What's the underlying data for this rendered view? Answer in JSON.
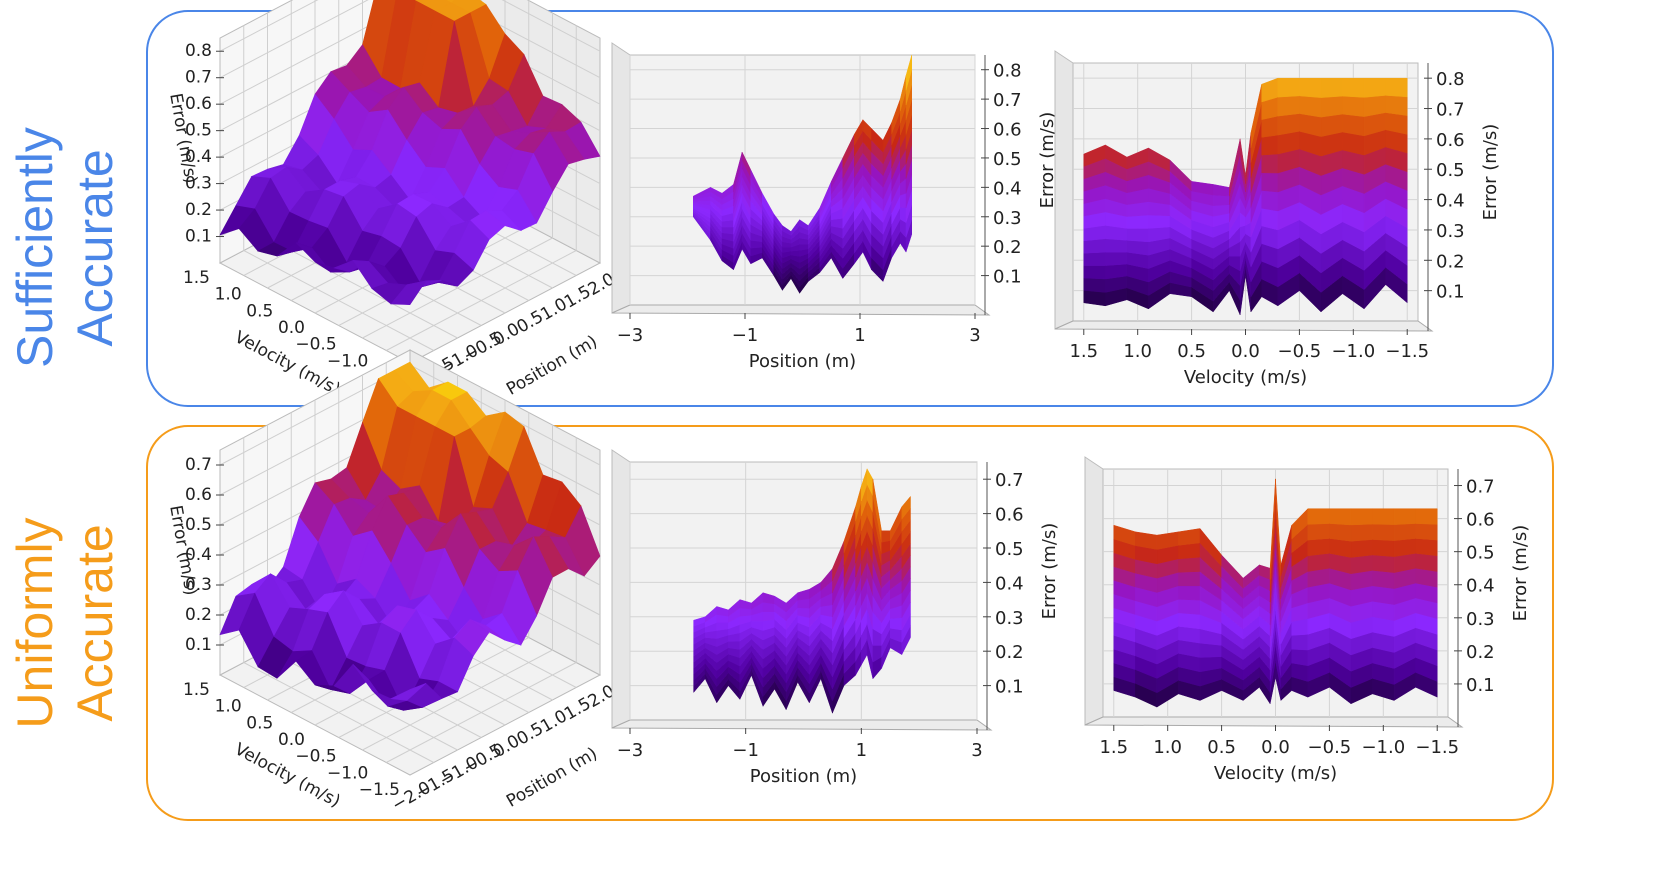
{
  "rows": [
    {
      "id": "top",
      "label_line1": "Sufficiently",
      "label_line2": "Accurate",
      "color": "#4a86e8"
    },
    {
      "id": "bottom",
      "label_line1": "Uniformly",
      "label_line2": "Accurate",
      "color": "#f59c1a"
    }
  ],
  "chart_data": [
    {
      "type": "surface3d",
      "row": "Sufficiently Accurate",
      "view": "iso",
      "zlabel": "Error (m/s)",
      "xlabel": "Velocity (m/s)",
      "ylabel": "Position (m)",
      "zticks": [
        "0.1",
        "0.2",
        "0.3",
        "0.4",
        "0.5",
        "0.6",
        "0.7",
        "0.8"
      ],
      "vticks": [
        "1.5",
        "1.0",
        "0.5",
        "0.0",
        "−0.5",
        "−1.0",
        "−1.5"
      ],
      "pticks": [
        "−2.0",
        "−1.5",
        "−1.0",
        "−0.5",
        "0.0",
        "0.5",
        "1.0",
        "1.5",
        "2.0"
      ],
      "colormap": "gnuplot"
    },
    {
      "type": "surface3d",
      "row": "Sufficiently Accurate",
      "view": "position-side",
      "xlabel": "Position (m)",
      "ylabel": "Error (m/s)",
      "xticks": [
        "−3",
        "−1",
        "1",
        "3"
      ],
      "xtick_values": [
        -3,
        -1,
        1,
        3
      ],
      "yticks": [
        "0.1",
        "0.2",
        "0.3",
        "0.4",
        "0.5",
        "0.6",
        "0.7",
        "0.8"
      ],
      "xlim": [
        -3,
        3
      ],
      "ylim": [
        0,
        0.85
      ],
      "profile": {
        "x": [
          -1.9,
          -1.6,
          -1.4,
          -1.2,
          -1.05,
          -0.9,
          -0.7,
          -0.5,
          -0.35,
          -0.2,
          -0.05,
          0.1,
          0.3,
          0.5,
          0.7,
          0.9,
          1.05,
          1.2,
          1.4,
          1.55,
          1.7,
          1.8,
          1.9
        ],
        "max": [
          0.37,
          0.4,
          0.38,
          0.41,
          0.52,
          0.46,
          0.38,
          0.31,
          0.27,
          0.25,
          0.29,
          0.27,
          0.33,
          0.42,
          0.5,
          0.58,
          0.63,
          0.6,
          0.56,
          0.62,
          0.7,
          0.78,
          0.85
        ],
        "min": [
          0.3,
          0.22,
          0.15,
          0.12,
          0.19,
          0.14,
          0.16,
          0.1,
          0.05,
          0.09,
          0.04,
          0.08,
          0.11,
          0.16,
          0.09,
          0.14,
          0.18,
          0.12,
          0.08,
          0.16,
          0.21,
          0.18,
          0.24
        ]
      }
    },
    {
      "type": "surface3d",
      "row": "Sufficiently Accurate",
      "view": "velocity-side",
      "xlabel": "Velocity (m/s)",
      "ylabel": "Error (m/s)",
      "xticks": [
        "1.5",
        "1.0",
        "0.5",
        "0.0",
        "−0.5",
        "−1.0",
        "−1.5"
      ],
      "xtick_values": [
        1.5,
        1.0,
        0.5,
        0.0,
        -0.5,
        -1.0,
        -1.5
      ],
      "yticks": [
        "0.1",
        "0.2",
        "0.3",
        "0.4",
        "0.5",
        "0.6",
        "0.7",
        "0.8"
      ],
      "xlim": [
        1.6,
        -1.6
      ],
      "ylim": [
        0,
        0.85
      ],
      "profile": {
        "x": [
          1.5,
          1.3,
          1.1,
          0.9,
          0.7,
          0.5,
          0.3,
          0.15,
          0.05,
          0.0,
          -0.05,
          -0.15,
          -0.3,
          -0.5,
          -0.7,
          -0.9,
          -1.1,
          -1.3,
          -1.5
        ],
        "max": [
          0.55,
          0.58,
          0.54,
          0.57,
          0.53,
          0.46,
          0.45,
          0.44,
          0.6,
          0.48,
          0.62,
          0.78,
          0.8,
          0.8,
          0.8,
          0.8,
          0.8,
          0.8,
          0.8
        ],
        "min": [
          0.06,
          0.05,
          0.07,
          0.04,
          0.09,
          0.08,
          0.03,
          0.1,
          0.02,
          0.15,
          0.03,
          0.08,
          0.05,
          0.1,
          0.03,
          0.09,
          0.04,
          0.12,
          0.06
        ]
      }
    },
    {
      "type": "surface3d",
      "row": "Uniformly Accurate",
      "view": "iso",
      "zlabel": "Error (m/s)",
      "xlabel": "Velocity (m/s)",
      "ylabel": "Position (m)",
      "zticks": [
        "0.1",
        "0.2",
        "0.3",
        "0.4",
        "0.5",
        "0.6",
        "0.7"
      ],
      "vticks": [
        "1.5",
        "1.0",
        "0.5",
        "0.0",
        "−0.5",
        "−1.0",
        "−1.5"
      ],
      "pticks": [
        "−2.0",
        "−1.5",
        "−1.0",
        "−0.5",
        "0.0",
        "0.5",
        "1.0",
        "1.5",
        "2.0"
      ],
      "colormap": "gnuplot"
    },
    {
      "type": "surface3d",
      "row": "Uniformly Accurate",
      "view": "position-side",
      "xlabel": "Position (m)",
      "ylabel": "Error (m/s)",
      "xticks": [
        "−3",
        "−1",
        "1",
        "3"
      ],
      "xtick_values": [
        -3,
        -1,
        1,
        3
      ],
      "yticks": [
        "0.1",
        "0.2",
        "0.3",
        "0.4",
        "0.5",
        "0.6",
        "0.7"
      ],
      "xlim": [
        -3,
        3
      ],
      "ylim": [
        0,
        0.75
      ],
      "profile": {
        "x": [
          -1.9,
          -1.7,
          -1.5,
          -1.3,
          -1.1,
          -0.9,
          -0.7,
          -0.5,
          -0.3,
          -0.1,
          0.1,
          0.3,
          0.5,
          0.7,
          0.9,
          1.0,
          1.1,
          1.2,
          1.35,
          1.5,
          1.7,
          1.85
        ],
        "max": [
          0.29,
          0.3,
          0.33,
          0.32,
          0.35,
          0.34,
          0.37,
          0.36,
          0.34,
          0.37,
          0.38,
          0.4,
          0.44,
          0.52,
          0.62,
          0.68,
          0.73,
          0.7,
          0.55,
          0.55,
          0.62,
          0.65
        ],
        "min": [
          0.08,
          0.12,
          0.05,
          0.1,
          0.06,
          0.13,
          0.04,
          0.09,
          0.03,
          0.11,
          0.05,
          0.12,
          0.02,
          0.1,
          0.13,
          0.16,
          0.19,
          0.12,
          0.15,
          0.21,
          0.19,
          0.24
        ]
      }
    },
    {
      "type": "surface3d",
      "row": "Uniformly Accurate",
      "view": "velocity-side",
      "xlabel": "Velocity (m/s)",
      "ylabel": "Error (m/s)",
      "xticks": [
        "1.5",
        "1.0",
        "0.5",
        "0.0",
        "−0.5",
        "−1.0",
        "−1.5"
      ],
      "xtick_values": [
        1.5,
        1.0,
        0.5,
        0.0,
        -0.5,
        -1.0,
        -1.5
      ],
      "yticks": [
        "0.1",
        "0.2",
        "0.3",
        "0.4",
        "0.5",
        "0.6",
        "0.7"
      ],
      "xlim": [
        1.6,
        -1.6
      ],
      "ylim": [
        0,
        0.75
      ],
      "profile": {
        "x": [
          1.5,
          1.3,
          1.1,
          0.9,
          0.7,
          0.5,
          0.3,
          0.15,
          0.05,
          0.0,
          -0.05,
          -0.15,
          -0.3,
          -0.5,
          -0.7,
          -0.9,
          -1.1,
          -1.3,
          -1.5
        ],
        "max": [
          0.58,
          0.56,
          0.55,
          0.56,
          0.57,
          0.49,
          0.42,
          0.46,
          0.45,
          0.72,
          0.46,
          0.58,
          0.63,
          0.63,
          0.63,
          0.63,
          0.63,
          0.63,
          0.63
        ],
        "min": [
          0.08,
          0.06,
          0.03,
          0.07,
          0.05,
          0.08,
          0.05,
          0.09,
          0.04,
          0.12,
          0.05,
          0.08,
          0.06,
          0.09,
          0.04,
          0.07,
          0.05,
          0.09,
          0.06
        ]
      }
    }
  ]
}
